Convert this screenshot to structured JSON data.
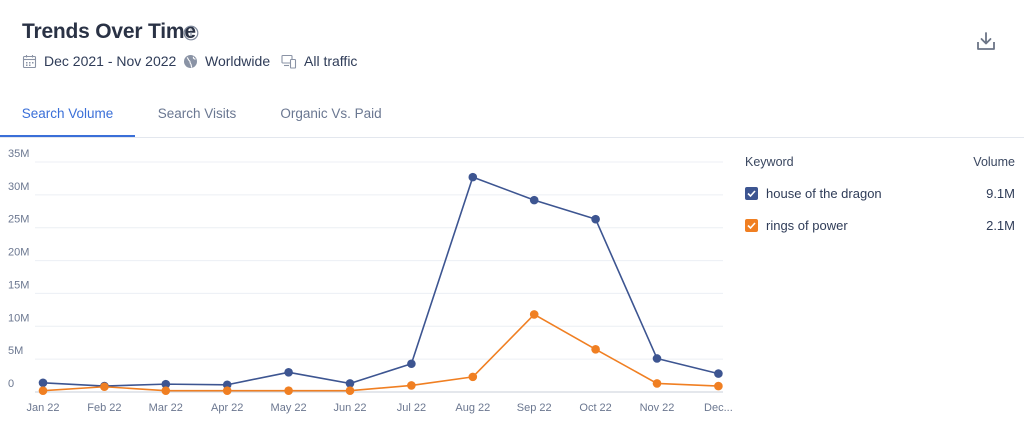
{
  "header": {
    "title": "Trends Over Time",
    "date_range": "Dec 2021 - Nov 2022",
    "region": "Worldwide",
    "traffic": "All traffic"
  },
  "tabs": [
    {
      "label": "Search Volume",
      "active": true
    },
    {
      "label": "Search Visits",
      "active": false
    },
    {
      "label": "Organic Vs. Paid",
      "active": false
    }
  ],
  "legend": {
    "keyword_header": "Keyword",
    "volume_header": "Volume"
  },
  "chart_data": {
    "type": "line",
    "categories": [
      "Jan 22",
      "Feb 22",
      "Mar 22",
      "Apr 22",
      "May 22",
      "Jun 22",
      "Jul 22",
      "Aug 22",
      "Sep 22",
      "Oct 22",
      "Nov 22",
      "Dec..."
    ],
    "yticks": [
      "0",
      "5M",
      "10M",
      "15M",
      "20M",
      "25M",
      "30M",
      "35M"
    ],
    "ylim": [
      0,
      35000000
    ],
    "series": [
      {
        "name": "house of the dragon",
        "volume": "9.1M",
        "color": "#3d5591",
        "values": [
          1400000,
          900000,
          1200000,
          1100000,
          3000000,
          1300000,
          4300000,
          32700000,
          29200000,
          26300000,
          5100000,
          2800000
        ]
      },
      {
        "name": "rings of power",
        "volume": "2.1M",
        "color": "#f07f22",
        "values": [
          200000,
          800000,
          200000,
          200000,
          200000,
          200000,
          1000000,
          2300000,
          11800000,
          6500000,
          1300000,
          900000
        ]
      }
    ]
  }
}
